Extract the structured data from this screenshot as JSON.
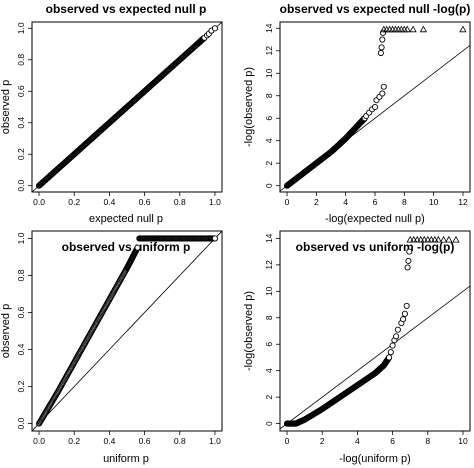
{
  "figure": {
    "panels": [
      {
        "title": "observed vs expected null p",
        "xlabel": "expected null p",
        "ylabel": "observed p"
      },
      {
        "title": "observed vs expected null -log(p)",
        "xlabel": "-log(expected null p)",
        "ylabel": "-log(observed p)"
      },
      {
        "title": "observed vs uniform p",
        "xlabel": "uniform p",
        "ylabel": "observed p"
      },
      {
        "title": "observed vs uniform -log(p)",
        "xlabel": "-log(uniform p)",
        "ylabel": "-log(observed p)"
      }
    ]
  },
  "chart_data": [
    {
      "type": "scatter",
      "title": "observed vs expected null p",
      "xlabel": "expected null p",
      "ylabel": "observed p",
      "xlim": [
        0,
        1
      ],
      "ylim": [
        0,
        1
      ],
      "xticks": [
        0.0,
        0.2,
        0.4,
        0.6,
        0.8,
        1.0
      ],
      "xtick_labels": [
        "0.0",
        "0.2",
        "0.4",
        "0.6",
        "0.8",
        "1.0"
      ],
      "yticks": [
        0.0,
        0.2,
        0.4,
        0.6,
        0.8,
        1.0
      ],
      "ytick_labels": [
        "0.0",
        "0.2",
        "0.4",
        "0.6",
        "0.8",
        "1.0"
      ],
      "reference_line": "y = x",
      "series": [
        {
          "marker": "circle",
          "style": "dense",
          "x": [
            0,
            0.1,
            0.2,
            0.3,
            0.4,
            0.5,
            0.6,
            0.7,
            0.8,
            0.9,
            0.94
          ],
          "y": [
            0,
            0.1,
            0.2,
            0.3,
            0.4,
            0.5,
            0.6,
            0.7,
            0.8,
            0.9,
            0.94
          ]
        },
        {
          "marker": "circle",
          "style": "sparse",
          "x": [
            0.955,
            0.965,
            0.98,
            1.0
          ],
          "y": [
            0.955,
            0.965,
            0.985,
            1.0
          ]
        }
      ]
    },
    {
      "type": "scatter",
      "title": "observed vs expected null -log(p)",
      "xlabel": "-log(expected null p)",
      "ylabel": "-log(observed p)",
      "xlim": [
        0,
        12
      ],
      "ylim": [
        0,
        14
      ],
      "xticks": [
        0,
        2,
        4,
        6,
        8,
        10,
        12
      ],
      "xtick_labels": [
        "0",
        "2",
        "4",
        "6",
        "8",
        "10",
        "12"
      ],
      "yticks": [
        0,
        2,
        4,
        6,
        8,
        10,
        12,
        14
      ],
      "ytick_labels": [
        "0",
        "2",
        "4",
        "6",
        "8",
        "10",
        "12",
        "14"
      ],
      "reference_line": "y = x",
      "series": [
        {
          "marker": "circle",
          "style": "dense",
          "x": [
            0,
            1,
            2,
            3,
            3.5,
            4.0,
            4.5,
            5.0,
            5.3
          ],
          "y": [
            0,
            1.0,
            2.0,
            3.0,
            3.6,
            4.2,
            4.9,
            5.6,
            6.0
          ]
        },
        {
          "marker": "circle",
          "style": "sparse",
          "x": [
            5.4,
            5.6,
            5.8,
            6.0,
            6.1,
            6.3,
            6.5,
            6.6,
            6.4,
            6.45,
            6.5,
            6.55
          ],
          "y": [
            6.2,
            6.5,
            6.8,
            7.0,
            7.6,
            7.9,
            8.2,
            8.8,
            11.8,
            12.3,
            13.0,
            13.6
          ]
        },
        {
          "marker": "triangle",
          "style": "sparse",
          "x": [
            6.6,
            6.8,
            7.0,
            7.2,
            7.4,
            7.6,
            7.8,
            8.0,
            8.2,
            8.6,
            9.3,
            12.0
          ],
          "y": [
            13.9,
            13.9,
            13.9,
            13.9,
            13.9,
            13.9,
            13.9,
            13.9,
            13.9,
            13.9,
            13.9,
            13.9
          ]
        }
      ]
    },
    {
      "type": "scatter",
      "title": "observed vs uniform p",
      "xlabel": "uniform p",
      "ylabel": "observed p",
      "xlim": [
        0,
        1
      ],
      "ylim": [
        0,
        1
      ],
      "xticks": [
        0.0,
        0.2,
        0.4,
        0.6,
        0.8,
        1.0
      ],
      "xtick_labels": [
        "0.0",
        "0.2",
        "0.4",
        "0.6",
        "0.8",
        "1.0"
      ],
      "yticks": [
        0.0,
        0.2,
        0.4,
        0.6,
        0.8,
        1.0
      ],
      "ytick_labels": [
        "0.0",
        "0.2",
        "0.4",
        "0.6",
        "0.8",
        "1.0"
      ],
      "reference_line": "y = x",
      "series": [
        {
          "marker": "circle",
          "style": "dense",
          "x": [
            0,
            0.1,
            0.2,
            0.3,
            0.4,
            0.5,
            0.56
          ],
          "y": [
            0,
            0.16,
            0.33,
            0.5,
            0.67,
            0.84,
            0.95
          ]
        },
        {
          "marker": "circle",
          "style": "dense",
          "x": [
            0.57,
            0.7,
            0.85,
            1.0
          ],
          "y": [
            1.0,
            1.0,
            1.0,
            1.0
          ]
        }
      ]
    },
    {
      "type": "scatter",
      "title": "observed vs uniform -log(p)",
      "xlabel": "-log(uniform p)",
      "ylabel": "-log(observed p)",
      "xlim": [
        0,
        10
      ],
      "ylim": [
        0,
        14
      ],
      "xticks": [
        0,
        2,
        4,
        6,
        8,
        10
      ],
      "xtick_labels": [
        "0",
        "2",
        "4",
        "6",
        "8",
        "10"
      ],
      "yticks": [
        0,
        2,
        4,
        6,
        8,
        10,
        12,
        14
      ],
      "ytick_labels": [
        "0",
        "2",
        "4",
        "6",
        "8",
        "10",
        "12",
        "14"
      ],
      "reference_line": "y = x",
      "series": [
        {
          "marker": "circle",
          "style": "dense",
          "x": [
            0,
            0.5,
            1,
            2,
            3,
            4,
            5,
            5.5,
            5.8
          ],
          "y": [
            0,
            0.0,
            0.3,
            1.1,
            2.0,
            2.9,
            3.8,
            4.4,
            5.0
          ]
        },
        {
          "marker": "circle",
          "style": "sparse",
          "x": [
            5.9,
            6.0,
            6.1,
            6.2,
            6.3,
            6.5,
            6.6,
            6.7,
            6.8,
            6.85,
            6.9,
            6.95
          ],
          "y": [
            5.4,
            5.9,
            6.3,
            6.6,
            7.1,
            7.6,
            7.9,
            8.3,
            8.9,
            11.8,
            12.3,
            13.0
          ]
        },
        {
          "marker": "triangle",
          "style": "sparse",
          "x": [
            7.0,
            7.2,
            7.4,
            7.6,
            7.8,
            8.0,
            8.2,
            8.4,
            8.6,
            8.9,
            9.2,
            9.6
          ],
          "y": [
            13.9,
            13.9,
            13.9,
            13.9,
            13.9,
            13.9,
            13.9,
            13.9,
            13.9,
            13.9,
            13.9,
            13.9
          ]
        }
      ]
    }
  ]
}
